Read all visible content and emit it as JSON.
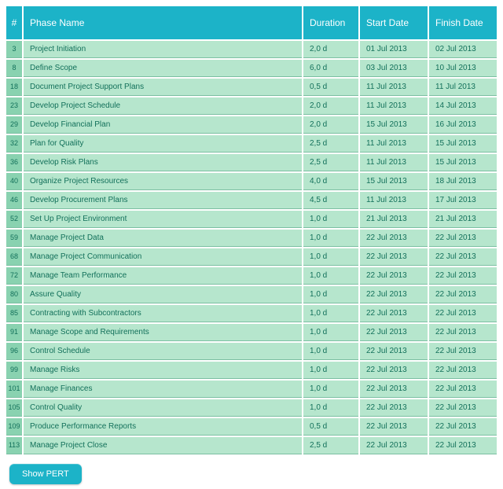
{
  "colors": {
    "header_bg": "#1cb3c8",
    "header_text": "#ffffff",
    "row_bg": "#b6e6cd",
    "rownum_bg": "#89d2b0",
    "row_text": "#12705a",
    "row_border": "#7bbfa2",
    "button_bg": "#1cb3c8",
    "button_text": "#ffffff"
  },
  "table": {
    "columns": {
      "num": "#",
      "phase": "Phase Name",
      "duration": "Duration",
      "start": "Start Date",
      "finish": "Finish Date"
    },
    "rows": [
      {
        "num": "3",
        "phase": "Project Initiation",
        "duration": "2,0 d",
        "start": "01 Jul 2013",
        "finish": "02 Jul 2013"
      },
      {
        "num": "8",
        "phase": "Define Scope",
        "duration": "6,0 d",
        "start": "03 Jul 2013",
        "finish": "10 Jul 2013"
      },
      {
        "num": "18",
        "phase": "Document Project Support Plans",
        "duration": "0,5 d",
        "start": "11 Jul 2013",
        "finish": "11 Jul 2013"
      },
      {
        "num": "23",
        "phase": "Develop Project Schedule",
        "duration": "2,0 d",
        "start": "11 Jul 2013",
        "finish": "14 Jul 2013"
      },
      {
        "num": "29",
        "phase": "Develop Financial Plan",
        "duration": "2,0 d",
        "start": "15 Jul 2013",
        "finish": "16 Jul 2013"
      },
      {
        "num": "32",
        "phase": "Plan for Quality",
        "duration": "2,5 d",
        "start": "11 Jul 2013",
        "finish": "15 Jul 2013"
      },
      {
        "num": "36",
        "phase": "Develop Risk Plans",
        "duration": "2,5 d",
        "start": "11 Jul 2013",
        "finish": "15 Jul 2013"
      },
      {
        "num": "40",
        "phase": "Organize Project Resources",
        "duration": "4,0 d",
        "start": "15 Jul 2013",
        "finish": "18 Jul 2013"
      },
      {
        "num": "46",
        "phase": "Develop Procurement Plans",
        "duration": "4,5 d",
        "start": "11 Jul 2013",
        "finish": "17 Jul 2013"
      },
      {
        "num": "52",
        "phase": "Set Up Project Environment",
        "duration": "1,0 d",
        "start": "21 Jul 2013",
        "finish": "21 Jul 2013"
      },
      {
        "num": "59",
        "phase": "Manage Project Data",
        "duration": "1,0 d",
        "start": "22 Jul 2013",
        "finish": "22 Jul 2013"
      },
      {
        "num": "68",
        "phase": "Manage Project Communication",
        "duration": "1,0 d",
        "start": "22 Jul 2013",
        "finish": "22 Jul 2013"
      },
      {
        "num": "72",
        "phase": "Manage Team Performance",
        "duration": "1,0 d",
        "start": "22 Jul 2013",
        "finish": "22 Jul 2013"
      },
      {
        "num": "80",
        "phase": "Assure Quality",
        "duration": "1,0 d",
        "start": "22 Jul 2013",
        "finish": "22 Jul 2013"
      },
      {
        "num": "85",
        "phase": "Contracting with Subcontractors",
        "duration": "1,0 d",
        "start": "22 Jul 2013",
        "finish": "22 Jul 2013"
      },
      {
        "num": "91",
        "phase": "Manage Scope and Requirements",
        "duration": "1,0 d",
        "start": "22 Jul 2013",
        "finish": "22 Jul 2013"
      },
      {
        "num": "96",
        "phase": "Control Schedule",
        "duration": "1,0 d",
        "start": "22 Jul 2013",
        "finish": "22 Jul 2013"
      },
      {
        "num": "99",
        "phase": "Manage Risks",
        "duration": "1,0 d",
        "start": "22 Jul 2013",
        "finish": "22 Jul 2013"
      },
      {
        "num": "101",
        "phase": "Manage Finances",
        "duration": "1,0 d",
        "start": "22 Jul 2013",
        "finish": "22 Jul 2013"
      },
      {
        "num": "105",
        "phase": "Control Quality",
        "duration": "1,0 d",
        "start": "22 Jul 2013",
        "finish": "22 Jul 2013"
      },
      {
        "num": "109",
        "phase": "Produce Performance Reports",
        "duration": "0,5 d",
        "start": "22 Jul 2013",
        "finish": "22 Jul 2013"
      },
      {
        "num": "113",
        "phase": "Manage Project Close",
        "duration": "2,5 d",
        "start": "22 Jul 2013",
        "finish": "22 Jul 2013"
      }
    ]
  },
  "button": {
    "label": "Show PERT"
  }
}
